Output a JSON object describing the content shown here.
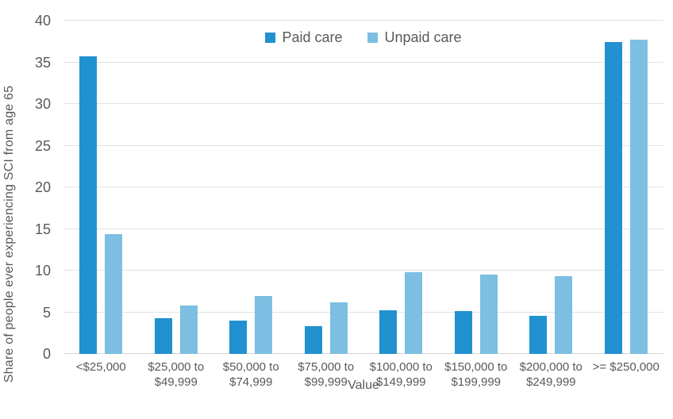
{
  "chart_data": {
    "type": "bar",
    "title": "",
    "xlabel": "Value",
    "ylabel": "Share of people ever experiencing SCI from age 65",
    "ylim": [
      0,
      40
    ],
    "yticks": [
      0,
      5,
      10,
      15,
      20,
      25,
      30,
      35,
      40
    ],
    "grid": true,
    "legend_position": "top-center",
    "categories": [
      "<$25,000",
      "$25,000 to $49,999",
      "$50,000 to $74,999",
      "$75,000 to $99,999",
      "$100,000 to $149,999",
      "$150,000 to $199,999",
      "$200,000 to $249,999",
      ">= $250,000"
    ],
    "category_lines": [
      [
        "<$25,000"
      ],
      [
        "$25,000 to",
        "$49,999"
      ],
      [
        "$50,000 to",
        "$74,999"
      ],
      [
        "$75,000 to",
        "$99,999"
      ],
      [
        "$100,000 to",
        "$149,999"
      ],
      [
        "$150,000 to",
        "$199,999"
      ],
      [
        "$200,000 to",
        "$249,999"
      ],
      [
        ">= $250,000"
      ]
    ],
    "series": [
      {
        "name": "Paid care",
        "color": "#2191d0",
        "values": [
          35.7,
          4.3,
          4.0,
          3.3,
          5.2,
          5.1,
          4.6,
          37.4
        ]
      },
      {
        "name": "Unpaid care",
        "color": "#7cbfe2",
        "values": [
          14.4,
          5.8,
          7.0,
          6.2,
          9.8,
          9.5,
          9.3,
          37.7
        ]
      }
    ]
  },
  "colors": {
    "paid_care": "#2191d0",
    "unpaid_care": "#7cbfe2",
    "text": "#595959",
    "gridline": "#e2e2e2",
    "axis_line": "#d6d6d6",
    "background": "#ffffff"
  }
}
